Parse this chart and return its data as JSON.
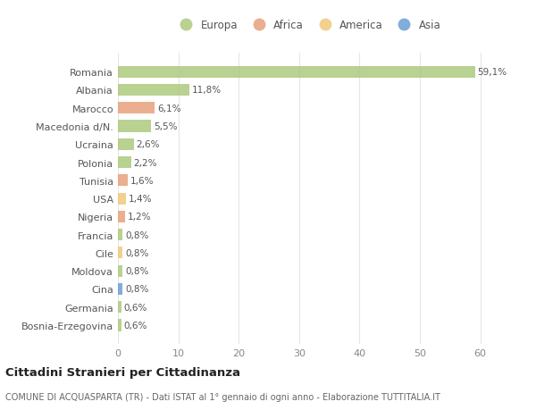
{
  "title": "Cittadini Stranieri per Cittadinanza",
  "subtitle": "COMUNE DI ACQUASPARTA (TR) - Dati ISTAT al 1° gennaio di ogni anno - Elaborazione TUTTITALIA.IT",
  "categories": [
    "Romania",
    "Albania",
    "Marocco",
    "Macedonia d/N.",
    "Ucraina",
    "Polonia",
    "Tunisia",
    "USA",
    "Nigeria",
    "Francia",
    "Cile",
    "Moldova",
    "Cina",
    "Germania",
    "Bosnia-Erzegovina"
  ],
  "values": [
    59.1,
    11.8,
    6.1,
    5.5,
    2.6,
    2.2,
    1.6,
    1.4,
    1.2,
    0.8,
    0.8,
    0.8,
    0.8,
    0.6,
    0.6
  ],
  "labels": [
    "59,1%",
    "11,8%",
    "6,1%",
    "5,5%",
    "2,6%",
    "2,2%",
    "1,6%",
    "1,4%",
    "1,2%",
    "0,8%",
    "0,8%",
    "0,8%",
    "0,8%",
    "0,6%",
    "0,6%"
  ],
  "colors": [
    "#adc97e",
    "#adc97e",
    "#e8a07a",
    "#adc97e",
    "#adc97e",
    "#adc97e",
    "#e8a07a",
    "#f0c97a",
    "#e8a07a",
    "#adc97e",
    "#f0c97a",
    "#adc97e",
    "#6b9fd4",
    "#adc97e",
    "#adc97e"
  ],
  "legend": [
    {
      "label": "Europa",
      "color": "#adc97e"
    },
    {
      "label": "Africa",
      "color": "#e8a07a"
    },
    {
      "label": "America",
      "color": "#f0c97a"
    },
    {
      "label": "Asia",
      "color": "#6b9fd4"
    }
  ],
  "xlim": [
    0,
    63
  ],
  "xticks": [
    0,
    10,
    20,
    30,
    40,
    50,
    60
  ],
  "bg_color": "#ffffff",
  "grid_color": "#e5e5e5",
  "bar_height": 0.65
}
